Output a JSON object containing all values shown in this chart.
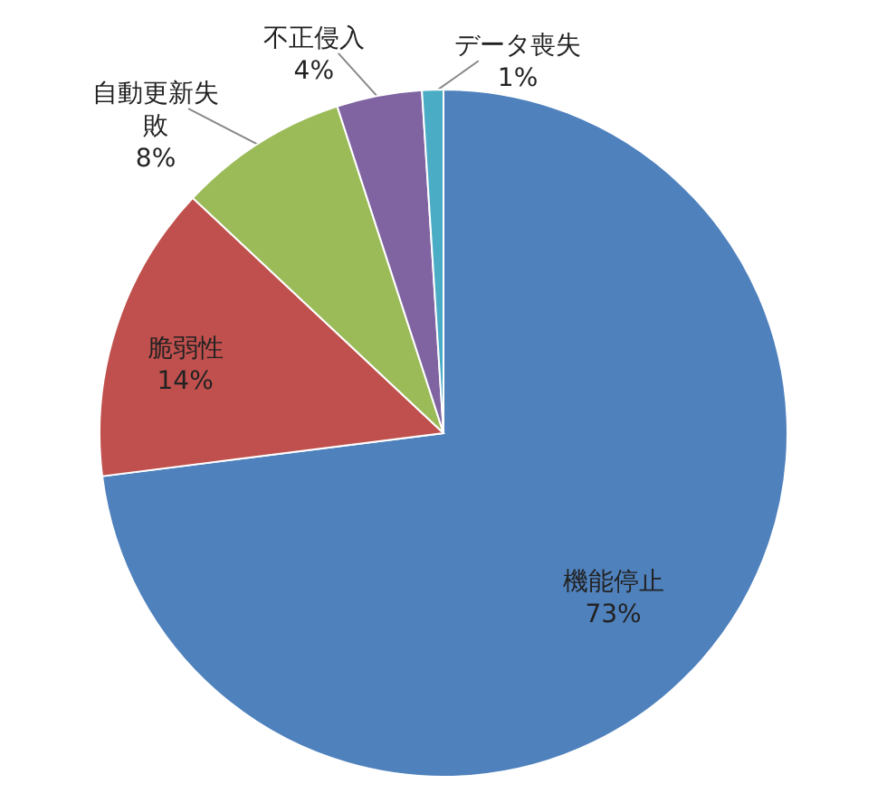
{
  "chart_data": {
    "type": "pie",
    "categories": [
      "機能停止",
      "脆弱性",
      "自動更新失敗",
      "不正侵入",
      "データ喪失"
    ],
    "values": [
      73,
      14,
      8,
      4,
      1
    ],
    "colors": [
      "#4f81bd",
      "#c0504d",
      "#9bbb59",
      "#8064a2",
      "#4bacc6"
    ],
    "value_labels": [
      "73%",
      "14%",
      "8%",
      "4%",
      "1%"
    ],
    "legend": false
  }
}
